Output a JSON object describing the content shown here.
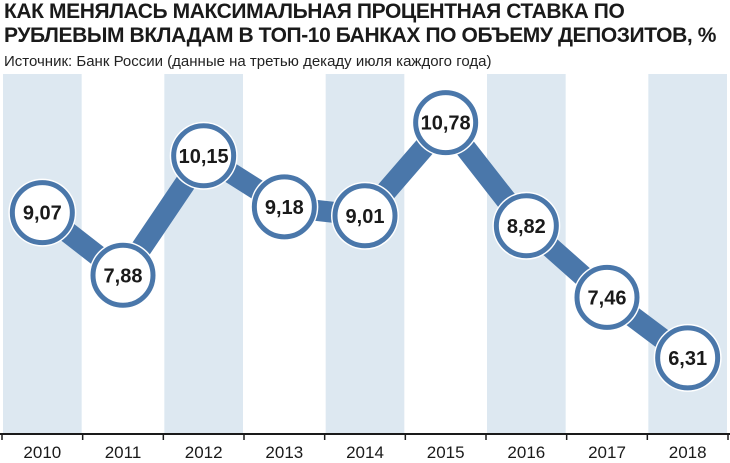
{
  "title": "КАК МЕНЯЛАСЬ МАКСИМАЛЬНАЯ ПРОЦЕНТНАЯ СТАВКА ПО РУБЛЕВЫМ ВКЛАДАМ В ТОП-10 БАНКАХ ПО ОБЪЕМУ ДЕПОЗИТОВ, %",
  "source": "Источник: Банк России (данные на третью декаду июля каждого года)",
  "colors": {
    "line": "#4a77aa",
    "marker_ring": "#4a77aa",
    "marker_fill": "#ffffff",
    "band": "#dde8f1",
    "axis": "#1a1a1a"
  },
  "chart_data": {
    "type": "line",
    "categories": [
      "2010",
      "2011",
      "2012",
      "2013",
      "2014",
      "2015",
      "2016",
      "2017",
      "2018"
    ],
    "values": [
      9.07,
      7.88,
      10.15,
      9.18,
      9.01,
      10.78,
      8.82,
      7.46,
      6.31
    ],
    "data_labels": [
      "9,07",
      "7,88",
      "10,15",
      "9,18",
      "9,01",
      "10,78",
      "8,82",
      "7,46",
      "6,31"
    ],
    "ylim": [
      5.7,
      11.4
    ],
    "grid": false,
    "alternating_bands": true
  }
}
